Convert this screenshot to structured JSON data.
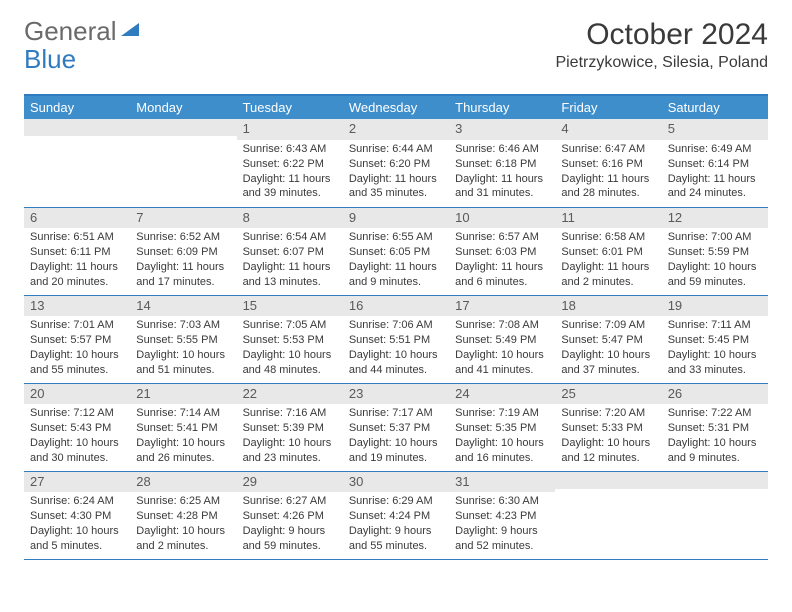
{
  "brand": {
    "part1": "General",
    "part2": "Blue"
  },
  "title": "October 2024",
  "location": "Pietrzykowice, Silesia, Poland",
  "colors": {
    "header_bg": "#3e8ecc",
    "divider": "#2f7cc0",
    "daynum_bg": "#e8e8e8",
    "text": "#3a3a3a"
  },
  "dow": [
    "Sunday",
    "Monday",
    "Tuesday",
    "Wednesday",
    "Thursday",
    "Friday",
    "Saturday"
  ],
  "weeks": [
    [
      {
        "n": "",
        "l": [
          "",
          "",
          "",
          ""
        ]
      },
      {
        "n": "",
        "l": [
          "",
          "",
          "",
          ""
        ]
      },
      {
        "n": "1",
        "l": [
          "Sunrise: 6:43 AM",
          "Sunset: 6:22 PM",
          "Daylight: 11 hours",
          "and 39 minutes."
        ]
      },
      {
        "n": "2",
        "l": [
          "Sunrise: 6:44 AM",
          "Sunset: 6:20 PM",
          "Daylight: 11 hours",
          "and 35 minutes."
        ]
      },
      {
        "n": "3",
        "l": [
          "Sunrise: 6:46 AM",
          "Sunset: 6:18 PM",
          "Daylight: 11 hours",
          "and 31 minutes."
        ]
      },
      {
        "n": "4",
        "l": [
          "Sunrise: 6:47 AM",
          "Sunset: 6:16 PM",
          "Daylight: 11 hours",
          "and 28 minutes."
        ]
      },
      {
        "n": "5",
        "l": [
          "Sunrise: 6:49 AM",
          "Sunset: 6:14 PM",
          "Daylight: 11 hours",
          "and 24 minutes."
        ]
      }
    ],
    [
      {
        "n": "6",
        "l": [
          "Sunrise: 6:51 AM",
          "Sunset: 6:11 PM",
          "Daylight: 11 hours",
          "and 20 minutes."
        ]
      },
      {
        "n": "7",
        "l": [
          "Sunrise: 6:52 AM",
          "Sunset: 6:09 PM",
          "Daylight: 11 hours",
          "and 17 minutes."
        ]
      },
      {
        "n": "8",
        "l": [
          "Sunrise: 6:54 AM",
          "Sunset: 6:07 PM",
          "Daylight: 11 hours",
          "and 13 minutes."
        ]
      },
      {
        "n": "9",
        "l": [
          "Sunrise: 6:55 AM",
          "Sunset: 6:05 PM",
          "Daylight: 11 hours",
          "and 9 minutes."
        ]
      },
      {
        "n": "10",
        "l": [
          "Sunrise: 6:57 AM",
          "Sunset: 6:03 PM",
          "Daylight: 11 hours",
          "and 6 minutes."
        ]
      },
      {
        "n": "11",
        "l": [
          "Sunrise: 6:58 AM",
          "Sunset: 6:01 PM",
          "Daylight: 11 hours",
          "and 2 minutes."
        ]
      },
      {
        "n": "12",
        "l": [
          "Sunrise: 7:00 AM",
          "Sunset: 5:59 PM",
          "Daylight: 10 hours",
          "and 59 minutes."
        ]
      }
    ],
    [
      {
        "n": "13",
        "l": [
          "Sunrise: 7:01 AM",
          "Sunset: 5:57 PM",
          "Daylight: 10 hours",
          "and 55 minutes."
        ]
      },
      {
        "n": "14",
        "l": [
          "Sunrise: 7:03 AM",
          "Sunset: 5:55 PM",
          "Daylight: 10 hours",
          "and 51 minutes."
        ]
      },
      {
        "n": "15",
        "l": [
          "Sunrise: 7:05 AM",
          "Sunset: 5:53 PM",
          "Daylight: 10 hours",
          "and 48 minutes."
        ]
      },
      {
        "n": "16",
        "l": [
          "Sunrise: 7:06 AM",
          "Sunset: 5:51 PM",
          "Daylight: 10 hours",
          "and 44 minutes."
        ]
      },
      {
        "n": "17",
        "l": [
          "Sunrise: 7:08 AM",
          "Sunset: 5:49 PM",
          "Daylight: 10 hours",
          "and 41 minutes."
        ]
      },
      {
        "n": "18",
        "l": [
          "Sunrise: 7:09 AM",
          "Sunset: 5:47 PM",
          "Daylight: 10 hours",
          "and 37 minutes."
        ]
      },
      {
        "n": "19",
        "l": [
          "Sunrise: 7:11 AM",
          "Sunset: 5:45 PM",
          "Daylight: 10 hours",
          "and 33 minutes."
        ]
      }
    ],
    [
      {
        "n": "20",
        "l": [
          "Sunrise: 7:12 AM",
          "Sunset: 5:43 PM",
          "Daylight: 10 hours",
          "and 30 minutes."
        ]
      },
      {
        "n": "21",
        "l": [
          "Sunrise: 7:14 AM",
          "Sunset: 5:41 PM",
          "Daylight: 10 hours",
          "and 26 minutes."
        ]
      },
      {
        "n": "22",
        "l": [
          "Sunrise: 7:16 AM",
          "Sunset: 5:39 PM",
          "Daylight: 10 hours",
          "and 23 minutes."
        ]
      },
      {
        "n": "23",
        "l": [
          "Sunrise: 7:17 AM",
          "Sunset: 5:37 PM",
          "Daylight: 10 hours",
          "and 19 minutes."
        ]
      },
      {
        "n": "24",
        "l": [
          "Sunrise: 7:19 AM",
          "Sunset: 5:35 PM",
          "Daylight: 10 hours",
          "and 16 minutes."
        ]
      },
      {
        "n": "25",
        "l": [
          "Sunrise: 7:20 AM",
          "Sunset: 5:33 PM",
          "Daylight: 10 hours",
          "and 12 minutes."
        ]
      },
      {
        "n": "26",
        "l": [
          "Sunrise: 7:22 AM",
          "Sunset: 5:31 PM",
          "Daylight: 10 hours",
          "and 9 minutes."
        ]
      }
    ],
    [
      {
        "n": "27",
        "l": [
          "Sunrise: 6:24 AM",
          "Sunset: 4:30 PM",
          "Daylight: 10 hours",
          "and 5 minutes."
        ]
      },
      {
        "n": "28",
        "l": [
          "Sunrise: 6:25 AM",
          "Sunset: 4:28 PM",
          "Daylight: 10 hours",
          "and 2 minutes."
        ]
      },
      {
        "n": "29",
        "l": [
          "Sunrise: 6:27 AM",
          "Sunset: 4:26 PM",
          "Daylight: 9 hours",
          "and 59 minutes."
        ]
      },
      {
        "n": "30",
        "l": [
          "Sunrise: 6:29 AM",
          "Sunset: 4:24 PM",
          "Daylight: 9 hours",
          "and 55 minutes."
        ]
      },
      {
        "n": "31",
        "l": [
          "Sunrise: 6:30 AM",
          "Sunset: 4:23 PM",
          "Daylight: 9 hours",
          "and 52 minutes."
        ]
      },
      {
        "n": "",
        "l": [
          "",
          "",
          "",
          ""
        ]
      },
      {
        "n": "",
        "l": [
          "",
          "",
          "",
          ""
        ]
      }
    ]
  ]
}
